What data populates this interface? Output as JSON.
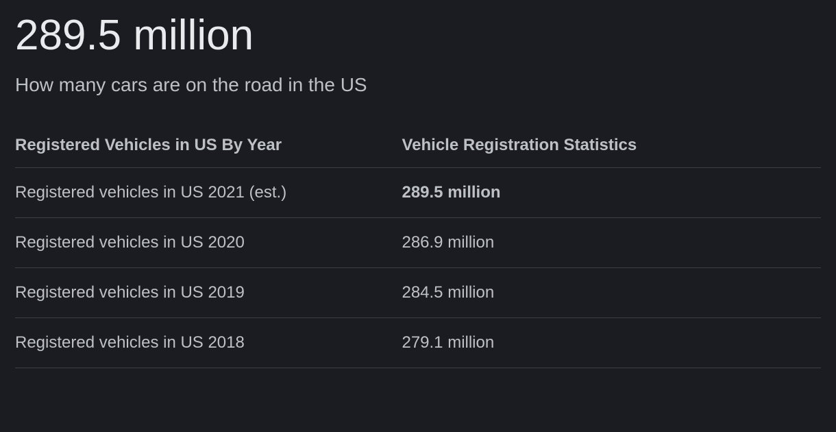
{
  "headline": "289.5 million",
  "subhead": "How many cars are on the road in the US",
  "table": {
    "type": "table",
    "background_color": "#1a1c21",
    "border_color": "#3c4043",
    "header_color": "#bdc1c6",
    "cell_color": "#bdc1c6",
    "header_fontsize": 24,
    "cell_fontsize": 24,
    "columns": [
      "Registered Vehicles in US By Year",
      "Vehicle Registration Statistics"
    ],
    "rows": [
      {
        "label": "Registered vehicles in US 2021 (est.)",
        "value": "289.5 million",
        "value_bold": true
      },
      {
        "label": "Registered vehicles in US 2020",
        "value": "286.9 million",
        "value_bold": false
      },
      {
        "label": "Registered vehicles in US 2019",
        "value": "284.5 million",
        "value_bold": false
      },
      {
        "label": "Registered vehicles in US 2018",
        "value": "279.1 million",
        "value_bold": false
      }
    ]
  },
  "colors": {
    "background": "#1a1c21",
    "headline_text": "#e8eaed",
    "body_text": "#bdc1c6",
    "divider": "#3c4043"
  }
}
